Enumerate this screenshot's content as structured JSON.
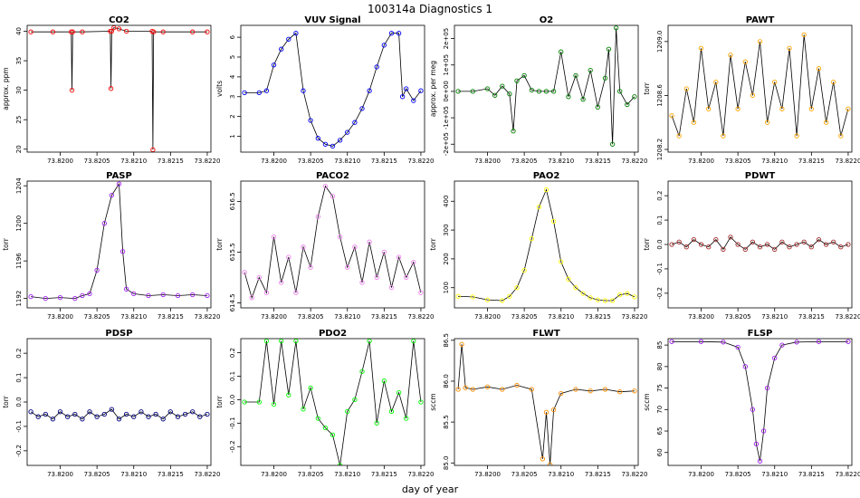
{
  "figure": {
    "title": "100314a   Diagnostics 1",
    "xlabel": "day of year"
  },
  "chart_data": [
    {
      "type": "line",
      "title": "CO2",
      "ylabel": "approx. ppm",
      "color": "#ff0000",
      "xlim": [
        73.81955,
        73.82205
      ],
      "xticks": [
        73.82,
        73.8205,
        73.821,
        73.8215,
        73.822
      ],
      "xtick_labels": [
        "73.8200",
        "73.8205",
        "73.8210",
        "73.8215",
        "73.8220"
      ],
      "ylim": [
        19.5,
        41
      ],
      "yticks": [
        20,
        25,
        30,
        35,
        40
      ],
      "ytick_labels": [
        "20",
        "25",
        "30",
        "35",
        "40"
      ],
      "x": [
        73.8196,
        73.8199,
        73.82015,
        73.82016,
        73.82017,
        73.8203,
        73.82068,
        73.82069,
        73.8207,
        73.82073,
        73.8208,
        73.8209,
        73.82125,
        73.82126,
        73.82127,
        73.8214,
        73.8218,
        73.822
      ],
      "values": [
        39.9,
        39.9,
        39.9,
        30.0,
        39.9,
        39.9,
        40.0,
        30.3,
        40.0,
        40.6,
        40.4,
        40.0,
        40.0,
        19.9,
        39.9,
        39.9,
        39.9,
        39.9
      ]
    },
    {
      "type": "line",
      "title": "VUV Signal",
      "ylabel": "volts",
      "color": "#0000ff",
      "xlim": [
        73.81955,
        73.82205
      ],
      "xticks": [
        73.82,
        73.8205,
        73.821,
        73.8215,
        73.822
      ],
      "xtick_labels": [
        "73.8200",
        "73.8205",
        "73.8210",
        "73.8215",
        "73.8220"
      ],
      "ylim": [
        0.2,
        6.6
      ],
      "yticks": [
        1,
        2,
        3,
        4,
        5,
        6
      ],
      "ytick_labels": [
        "1",
        "2",
        "3",
        "4",
        "5",
        "6"
      ],
      "x": [
        73.8196,
        73.8198,
        73.8199,
        73.82,
        73.8201,
        73.8202,
        73.8203,
        73.8204,
        73.8205,
        73.8206,
        73.8207,
        73.8208,
        73.8209,
        73.821,
        73.8211,
        73.8212,
        73.8213,
        73.8214,
        73.8215,
        73.8216,
        73.8217,
        73.82175,
        73.8218,
        73.8219,
        73.822
      ],
      "values": [
        3.2,
        3.2,
        3.3,
        4.6,
        5.4,
        5.9,
        6.2,
        3.3,
        1.8,
        0.9,
        0.6,
        0.5,
        0.8,
        1.2,
        1.7,
        2.4,
        3.3,
        4.5,
        5.6,
        6.2,
        6.2,
        3.0,
        3.4,
        2.8,
        3.3
      ]
    },
    {
      "type": "line",
      "title": "O2",
      "ylabel": "approx. per meg",
      "color": "#008000",
      "xlim": [
        73.81955,
        73.82205
      ],
      "xticks": [
        73.82,
        73.8205,
        73.821,
        73.8215,
        73.822
      ],
      "xtick_labels": [
        "73.8200",
        "73.8205",
        "73.8210",
        "73.8215",
        "73.8220"
      ],
      "ylim": [
        -230000,
        250000
      ],
      "yticks": [
        -200000,
        -100000,
        0,
        100000,
        200000
      ],
      "ytick_labels": [
        "-2e+05",
        "-1e+05",
        "0e+00",
        "1e+05",
        "2e+05"
      ],
      "x": [
        73.8196,
        73.8198,
        73.82,
        73.8201,
        73.8202,
        73.8203,
        73.82035,
        73.8204,
        73.8205,
        73.8206,
        73.8207,
        73.8208,
        73.8209,
        73.821,
        73.8211,
        73.8212,
        73.8213,
        73.8214,
        73.8215,
        73.8216,
        73.82165,
        73.8217,
        73.82175,
        73.8218,
        73.8219,
        73.822
      ],
      "values": [
        0,
        0,
        10000,
        -15000,
        20000,
        -10000,
        -150000,
        40000,
        60000,
        5000,
        0,
        0,
        0,
        150000,
        -20000,
        60000,
        -30000,
        80000,
        -60000,
        50000,
        160000,
        -200000,
        240000,
        0,
        -50000,
        -20000
      ]
    },
    {
      "type": "line",
      "title": "PAWT",
      "ylabel": "torr",
      "color": "#ffa500",
      "xlim": [
        73.81955,
        73.82205
      ],
      "xticks": [
        73.82,
        73.8205,
        73.821,
        73.8215,
        73.822
      ],
      "xtick_labels": [
        "73.8200",
        "73.8205",
        "73.8210",
        "73.8215",
        "73.8220"
      ],
      "ylim": [
        1208.18,
        1209.12
      ],
      "yticks": [
        1208.2,
        1208.6,
        1209.0
      ],
      "ytick_labels": [
        "1208.2",
        "1208.6",
        "1209.0"
      ],
      "x": [
        73.8196,
        73.8197,
        73.8198,
        73.8199,
        73.82,
        73.8201,
        73.8202,
        73.8203,
        73.8204,
        73.8205,
        73.8206,
        73.8207,
        73.8208,
        73.8209,
        73.821,
        73.8211,
        73.8212,
        73.8213,
        73.8214,
        73.8215,
        73.8216,
        73.8217,
        73.8218,
        73.8219,
        73.822
      ],
      "values": [
        1208.45,
        1208.3,
        1208.65,
        1208.4,
        1208.95,
        1208.5,
        1208.7,
        1208.3,
        1208.9,
        1208.5,
        1208.85,
        1208.6,
        1209.0,
        1208.4,
        1208.7,
        1208.5,
        1208.95,
        1208.3,
        1209.05,
        1208.5,
        1208.8,
        1208.4,
        1208.7,
        1208.3,
        1208.5
      ]
    },
    {
      "type": "line",
      "title": "PASP",
      "ylabel": "torr",
      "color": "#a020f0",
      "xlim": [
        73.81955,
        73.82205
      ],
      "xticks": [
        73.82,
        73.8205,
        73.821,
        73.8215,
        73.822
      ],
      "xtick_labels": [
        "73.8200",
        "73.8205",
        "73.8210",
        "73.8215",
        "73.8220"
      ],
      "ylim": [
        1191,
        1204.5
      ],
      "yticks": [
        1192,
        1196,
        1200,
        1204
      ],
      "ytick_labels": [
        "1192",
        "1196",
        "1200",
        "1204"
      ],
      "x": [
        73.8196,
        73.8198,
        73.82,
        73.8202,
        73.8203,
        73.8204,
        73.8205,
        73.8206,
        73.8207,
        73.8208,
        73.82085,
        73.8209,
        73.821,
        73.8212,
        73.8214,
        73.8216,
        73.8218,
        73.822
      ],
      "values": [
        1192.2,
        1192.0,
        1192.1,
        1192.0,
        1192.3,
        1192.5,
        1195.0,
        1200.0,
        1203.0,
        1204.2,
        1197.0,
        1193.0,
        1192.5,
        1192.3,
        1192.4,
        1192.3,
        1192.4,
        1192.3
      ]
    },
    {
      "type": "line",
      "title": "PACO2",
      "ylabel": "torr",
      "color": "#ee82ee",
      "xlim": [
        73.81955,
        73.82205
      ],
      "xticks": [
        73.82,
        73.8205,
        73.821,
        73.8215,
        73.822
      ],
      "xtick_labels": [
        "73.8200",
        "73.8205",
        "73.8210",
        "73.8215",
        "73.8220"
      ],
      "ylim": [
        614.4,
        616.9
      ],
      "yticks": [
        614.5,
        615.5,
        616.5
      ],
      "ytick_labels": [
        "614.5",
        "615.5",
        "616.5"
      ],
      "x": [
        73.8196,
        73.8197,
        73.8198,
        73.8199,
        73.82,
        73.8201,
        73.8202,
        73.8203,
        73.8204,
        73.8205,
        73.8206,
        73.8207,
        73.8208,
        73.8209,
        73.821,
        73.8211,
        73.8212,
        73.8213,
        73.8214,
        73.8215,
        73.8216,
        73.8217,
        73.8218,
        73.8219,
        73.822
      ],
      "values": [
        615.1,
        614.6,
        615.0,
        614.7,
        615.8,
        614.9,
        615.4,
        614.7,
        615.6,
        615.2,
        616.2,
        616.8,
        616.6,
        615.8,
        615.2,
        615.6,
        614.9,
        615.7,
        615.0,
        615.5,
        614.8,
        615.4,
        615.0,
        615.3,
        614.7
      ]
    },
    {
      "type": "line",
      "title": "PAO2",
      "ylabel": "torr",
      "color": "#ffff00",
      "xlim": [
        73.81955,
        73.82205
      ],
      "xticks": [
        73.82,
        73.8205,
        73.821,
        73.8215,
        73.822
      ],
      "xtick_labels": [
        "73.8200",
        "73.8205",
        "73.8210",
        "73.8215",
        "73.8220"
      ],
      "ylim": [
        30,
        470
      ],
      "yticks": [
        100,
        200,
        300,
        400
      ],
      "ytick_labels": [
        "100",
        "200",
        "300",
        "400"
      ],
      "x": [
        73.8196,
        73.8198,
        73.82,
        73.8202,
        73.8203,
        73.8204,
        73.8205,
        73.8206,
        73.8207,
        73.8208,
        73.8209,
        73.821,
        73.8211,
        73.8212,
        73.8213,
        73.8214,
        73.8215,
        73.8216,
        73.8217,
        73.8218,
        73.8219,
        73.822
      ],
      "values": [
        70,
        68,
        58,
        55,
        70,
        100,
        160,
        270,
        380,
        440,
        330,
        190,
        130,
        100,
        80,
        65,
        58,
        55,
        55,
        75,
        80,
        68
      ]
    },
    {
      "type": "line",
      "title": "PDWT",
      "ylabel": "torr",
      "color": "#a52a2a",
      "xlim": [
        73.81955,
        73.82205
      ],
      "xticks": [
        73.82,
        73.8205,
        73.821,
        73.8215,
        73.822
      ],
      "xtick_labels": [
        "73.8200",
        "73.8205",
        "73.8210",
        "73.8215",
        "73.8220"
      ],
      "ylim": [
        -0.26,
        0.26
      ],
      "yticks": [
        -0.2,
        -0.1,
        0.0,
        0.1,
        0.2
      ],
      "ytick_labels": [
        "-0.2",
        "-0.1",
        "0.0",
        "0.1",
        "0.2"
      ],
      "x": [
        73.8196,
        73.8197,
        73.8198,
        73.8199,
        73.82,
        73.8201,
        73.8202,
        73.8203,
        73.8204,
        73.8205,
        73.8206,
        73.8207,
        73.8208,
        73.8209,
        73.821,
        73.8211,
        73.8212,
        73.8213,
        73.8214,
        73.8215,
        73.8216,
        73.8217,
        73.8218,
        73.8219,
        73.822
      ],
      "values": [
        0.0,
        0.01,
        -0.01,
        0.02,
        0.0,
        -0.01,
        0.02,
        -0.02,
        0.03,
        0.0,
        -0.02,
        0.01,
        -0.01,
        0.0,
        -0.02,
        0.01,
        -0.01,
        0.0,
        0.01,
        -0.01,
        0.02,
        0.0,
        0.01,
        -0.01,
        0.0
      ]
    },
    {
      "type": "line",
      "title": "PDSP",
      "ylabel": "torr",
      "color": "#000080",
      "xlim": [
        73.81955,
        73.82205
      ],
      "xticks": [
        73.82,
        73.8205,
        73.821,
        73.8215,
        73.822
      ],
      "xtick_labels": [
        "73.8200",
        "73.8205",
        "73.8210",
        "73.8215",
        "73.8220"
      ],
      "ylim": [
        -0.26,
        0.26
      ],
      "yticks": [
        -0.2,
        -0.1,
        0.0,
        0.1,
        0.2
      ],
      "ytick_labels": [
        "-0.2",
        "-0.1",
        "0.0",
        "0.1",
        "0.2"
      ],
      "x": [
        73.8196,
        73.8197,
        73.8198,
        73.8199,
        73.82,
        73.8201,
        73.8202,
        73.8203,
        73.8204,
        73.8205,
        73.8206,
        73.8207,
        73.8208,
        73.8209,
        73.821,
        73.8211,
        73.8212,
        73.8213,
        73.8214,
        73.8215,
        73.8216,
        73.8217,
        73.8218,
        73.8219,
        73.822
      ],
      "values": [
        -0.04,
        -0.06,
        -0.05,
        -0.07,
        -0.04,
        -0.06,
        -0.05,
        -0.07,
        -0.04,
        -0.06,
        -0.05,
        -0.03,
        -0.07,
        -0.05,
        -0.06,
        -0.04,
        -0.06,
        -0.05,
        -0.07,
        -0.04,
        -0.06,
        -0.05,
        -0.04,
        -0.06,
        -0.05
      ]
    },
    {
      "type": "line",
      "title": "PDO2",
      "ylabel": "torr",
      "color": "#00ff00",
      "xlim": [
        73.81955,
        73.82205
      ],
      "xticks": [
        73.82,
        73.8205,
        73.821,
        73.8215,
        73.822
      ],
      "xtick_labels": [
        "73.8200",
        "73.8205",
        "73.8210",
        "73.8215",
        "73.8220"
      ],
      "ylim": [
        -0.28,
        0.26
      ],
      "yticks": [
        -0.2,
        -0.1,
        0.0,
        0.1,
        0.2
      ],
      "ytick_labels": [
        "-0.2",
        "-0.1",
        "0.0",
        "0.1",
        "0.2"
      ],
      "x": [
        73.8196,
        73.8198,
        73.8199,
        73.82,
        73.8201,
        73.8202,
        73.8203,
        73.8204,
        73.8205,
        73.8206,
        73.8207,
        73.8208,
        73.8209,
        73.821,
        73.8211,
        73.8212,
        73.8213,
        73.8214,
        73.8215,
        73.8216,
        73.8217,
        73.8218,
        73.8219,
        73.822
      ],
      "values": [
        -0.01,
        -0.01,
        0.25,
        -0.02,
        0.25,
        0.02,
        0.25,
        -0.04,
        0.05,
        -0.08,
        -0.12,
        -0.15,
        -0.28,
        -0.05,
        0.0,
        0.12,
        0.25,
        -0.1,
        0.08,
        -0.05,
        0.03,
        -0.08,
        0.25,
        -0.01
      ]
    },
    {
      "type": "line",
      "title": "FLWT",
      "ylabel": "sccm",
      "color": "#ff8c00",
      "xlim": [
        73.81955,
        73.82205
      ],
      "xticks": [
        73.82,
        73.8205,
        73.821,
        73.8215,
        73.822
      ],
      "xtick_labels": [
        "73.8200",
        "73.8205",
        "73.8210",
        "73.8215",
        "73.8220"
      ],
      "ylim": [
        84.97,
        86.52
      ],
      "yticks": [
        85.0,
        85.5,
        86.0,
        86.5
      ],
      "ytick_labels": [
        "85.0",
        "85.5",
        "86.0",
        "86.5"
      ],
      "x": [
        73.8196,
        73.81965,
        73.8197,
        73.8198,
        73.82,
        73.8202,
        73.8204,
        73.8206,
        73.82075,
        73.8208,
        73.82085,
        73.8209,
        73.821,
        73.8212,
        73.8214,
        73.8216,
        73.8218,
        73.822
      ],
      "values": [
        85.9,
        86.45,
        85.92,
        85.9,
        85.93,
        85.9,
        85.95,
        85.9,
        85.05,
        85.62,
        84.98,
        85.65,
        85.85,
        85.9,
        85.88,
        85.9,
        85.87,
        85.88
      ]
    },
    {
      "type": "line",
      "title": "FLSP",
      "ylabel": "sccm",
      "color": "#a020f0",
      "xlim": [
        73.81955,
        73.82205
      ],
      "xticks": [
        73.82,
        73.8205,
        73.821,
        73.8215,
        73.822
      ],
      "xtick_labels": [
        "73.8200",
        "73.8205",
        "73.8210",
        "73.8215",
        "73.8220"
      ],
      "ylim": [
        57,
        86.5
      ],
      "yticks": [
        60,
        65,
        70,
        75,
        80,
        85
      ],
      "ytick_labels": [
        "60",
        "65",
        "70",
        "75",
        "80",
        "85"
      ],
      "x": [
        73.8196,
        73.82,
        73.8203,
        73.8205,
        73.8206,
        73.8207,
        73.82075,
        73.8208,
        73.82085,
        73.8209,
        73.821,
        73.8211,
        73.8213,
        73.8216,
        73.822
      ],
      "values": [
        85.8,
        85.8,
        85.7,
        84.5,
        80,
        70,
        62,
        58,
        65,
        75,
        82,
        85,
        85.7,
        85.8,
        85.8
      ]
    }
  ]
}
